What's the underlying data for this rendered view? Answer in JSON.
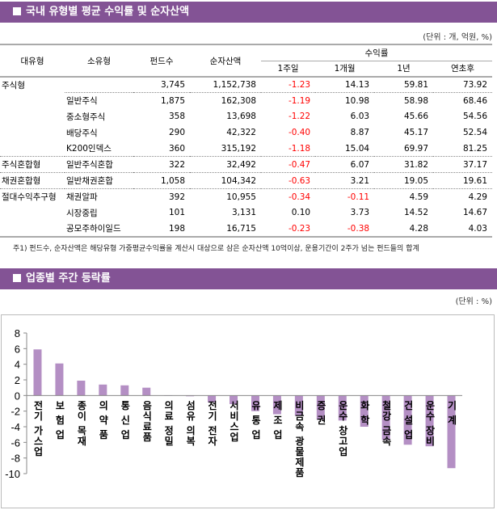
{
  "section1": {
    "title": "국내 유형별 평균 수익률 및 순자산액",
    "unit": "(단위 : 개, 억원, %)"
  },
  "table": {
    "headers": {
      "major": "대유형",
      "minor": "소유형",
      "funds": "펀드수",
      "assets": "순자산액",
      "returns": "수익률",
      "w1": "1주일",
      "m1": "1개월",
      "y1": "1년",
      "ytd": "연초후"
    },
    "rows": [
      [
        "주식형",
        "",
        "3,745",
        "1,152,738",
        "-1.23",
        "14.13",
        "59.81",
        "73.92"
      ],
      [
        "",
        "일반주식",
        "1,875",
        "162,308",
        "-1.19",
        "10.98",
        "58.98",
        "68.46"
      ],
      [
        "",
        "중소형주식",
        "358",
        "13,698",
        "-1.22",
        "6.03",
        "45.66",
        "54.56"
      ],
      [
        "",
        "배당주식",
        "290",
        "42,322",
        "-0.40",
        "8.87",
        "45.17",
        "52.54"
      ],
      [
        "",
        "K200인덱스",
        "360",
        "315,192",
        "-1.18",
        "15.04",
        "69.97",
        "81.25"
      ],
      [
        "주식혼합형",
        "일반주식혼합",
        "322",
        "32,492",
        "-0.47",
        "6.07",
        "31.82",
        "37.17"
      ],
      [
        "채권혼합형",
        "일반채권혼합",
        "1,058",
        "104,342",
        "-0.63",
        "3.21",
        "19.05",
        "19.61"
      ],
      [
        "절대수익추구형",
        "채권알파",
        "392",
        "10,955",
        "-0.34",
        "-0.11",
        "4.59",
        "4.29"
      ],
      [
        "",
        "시장중립",
        "101",
        "3,131",
        "0.10",
        "3.73",
        "14.52",
        "14.67"
      ],
      [
        "",
        "공모주하이일드",
        "198",
        "16,715",
        "-0.23",
        "-0.38",
        "4.28",
        "4.03"
      ]
    ]
  },
  "note": "주1) 펀드수, 순자산액은 해당유형 가중평균수익률을 계산시 대상으로 삼은 순자산액 10억이상, 운용기간이 2주가 넘는 펀드들의 합계",
  "section2": {
    "title": "업종별 주간 등락률",
    "unit": "(단위 : %)"
  },
  "colors": {
    "header": "#835395",
    "bar": "#b48fc4",
    "negative": "#ff0000"
  },
  "chart_data": {
    "type": "bar",
    "categories": [
      "전기 가스업",
      "보 험 업",
      "종이 목재",
      "의 약 품",
      "통 신 업",
      "음식료품",
      "의료 정밀",
      "섬유 의복",
      "전기 전자",
      "서비스업",
      "유 통 업",
      "제 조 업",
      "비금속 광물제품",
      "증 권",
      "운수 창고업",
      "화 학",
      "철강 금속",
      "건 설 업",
      "운수 장비",
      "기 계"
    ],
    "values": [
      5.9,
      4.1,
      1.9,
      1.4,
      1.3,
      1.0,
      0.0,
      -0.1,
      -0.9,
      -1.1,
      -2.0,
      -2.4,
      -2.6,
      -3.1,
      -3.2,
      -4.0,
      -5.7,
      -6.3,
      -6.5,
      -9.3
    ],
    "ylim": [
      -10,
      8
    ],
    "yticks": [
      8,
      6,
      4,
      2,
      0,
      -2,
      -4,
      -6,
      -8,
      -10
    ],
    "grid": false
  }
}
